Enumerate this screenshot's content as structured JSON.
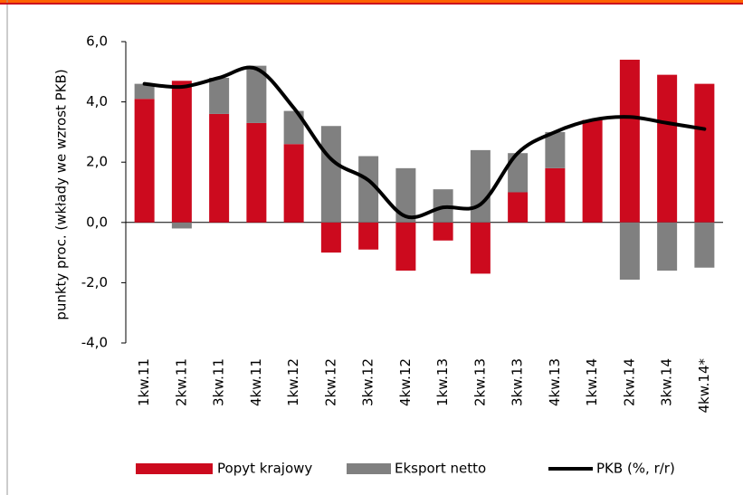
{
  "chart_data": {
    "type": "bar",
    "stacked": true,
    "y_label": "punkty proc. (wkłady we wzrost PKB)",
    "categories": [
      "1kw.11",
      "2kw.11",
      "3kw.11",
      "4kw.11",
      "1kw.12",
      "2kw.12",
      "3kw.12",
      "4kw.12",
      "1kw.13",
      "2kw.13",
      "3kw.13",
      "4kw.13",
      "1kw.14",
      "2kw.14",
      "3kw.14",
      "4kw.14*"
    ],
    "series": [
      {
        "name": "Popyt krajowy",
        "color": "#cc0a1e",
        "values": [
          4.1,
          4.7,
          3.6,
          3.3,
          2.6,
          -1.0,
          -0.9,
          -1.6,
          -0.6,
          -1.7,
          1.0,
          1.8,
          3.4,
          5.4,
          4.9,
          4.6
        ]
      },
      {
        "name": "Eksport netto",
        "color": "#808080",
        "values": [
          0.5,
          -0.2,
          1.2,
          1.9,
          1.1,
          3.2,
          2.2,
          1.8,
          1.1,
          2.4,
          1.3,
          1.2,
          0,
          -1.9,
          -1.6,
          -1.5
        ]
      },
      {
        "name": "PKB (%, r/r)",
        "type": "line",
        "color": "#000000",
        "values": [
          4.6,
          4.5,
          4.8,
          5.1,
          3.8,
          2.1,
          1.4,
          0.2,
          0.5,
          0.6,
          2.3,
          3.0,
          3.4,
          3.5,
          3.3,
          3.1
        ]
      }
    ],
    "ylim": [
      -4,
      6
    ],
    "yticks": [
      {
        "value": 6,
        "label": "6,0"
      },
      {
        "value": 4,
        "label": "4,0"
      },
      {
        "value": 2,
        "label": "2,0"
      },
      {
        "value": 0,
        "label": "0,0"
      },
      {
        "value": -2,
        "label": "-2,0"
      },
      {
        "value": -4,
        "label": "-4,0"
      }
    ],
    "legend": "bottom"
  }
}
